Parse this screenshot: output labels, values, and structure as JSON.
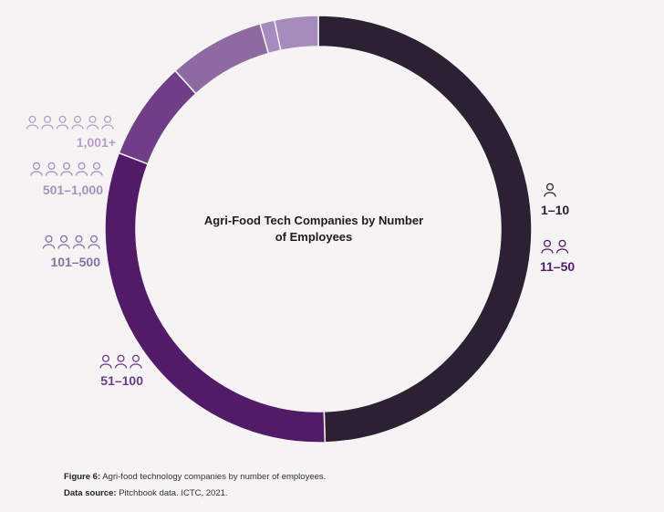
{
  "chart_data": {
    "type": "pie",
    "title": "Agri-Food Tech Companies by Number of Employees",
    "categories": [
      "1–10",
      "11–50",
      "51–100",
      "101–500",
      "501–1,000",
      "1,001+"
    ],
    "values": [
      49.5,
      31.3,
      7.5,
      7.3,
      1.1,
      3.3
    ],
    "colors": [
      "#2b2132",
      "#511b68",
      "#703e86",
      "#8d6aa2",
      "#a68bbd",
      "#a68bbd"
    ],
    "icon_counts": [
      1,
      2,
      3,
      4,
      5,
      6
    ],
    "label_colors": [
      "#2b2132",
      "#511b68",
      "#6a3d86",
      "#8a6fa5",
      "#a88fbf",
      "#b49fc8"
    ],
    "variant": "donut"
  },
  "caption": {
    "figure_label": "Figure 6:",
    "figure_text": "Agri-food technology companies by number of employees.",
    "source_label": "Data source:",
    "source_text": "Pitchbook data. ICTC, 2021."
  }
}
